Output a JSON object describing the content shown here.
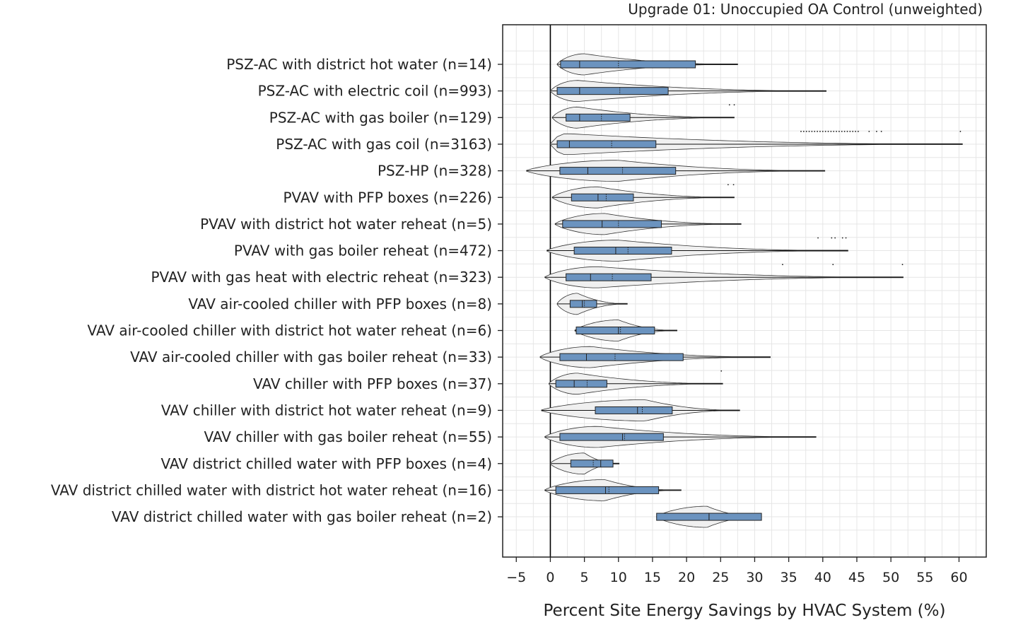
{
  "chart_data": {
    "type": "violin-box",
    "title": "Upgrade 01: Unoccupied OA Control (unweighted)",
    "xlabel": "Percent Site Energy Savings by HVAC System (%)",
    "ylabel": "",
    "xlim": [
      -7,
      64
    ],
    "x_ticks": [
      -5,
      0,
      5,
      10,
      15,
      20,
      25,
      30,
      35,
      40,
      45,
      50,
      55,
      60
    ],
    "x_tick_labels": [
      "−5",
      "0",
      "5",
      "10",
      "15",
      "20",
      "25",
      "30",
      "35",
      "40",
      "45",
      "50",
      "55",
      "60"
    ],
    "grid": true,
    "colors": {
      "box": "#6b93bf",
      "violin": "#f0f0f0",
      "outline": "#333333",
      "zero_line": "#000000",
      "grid": "#e6e6e6"
    },
    "series": [
      {
        "label": "PSZ-AC with district hot water (n=14)",
        "violin": [
          1.0,
          27.5,
          5
        ],
        "box": [
          1.5,
          21.3
        ],
        "median": 4.3,
        "mean": 10.0,
        "whisker": [
          1.0,
          27.5
        ],
        "outliers": []
      },
      {
        "label": "PSZ-AC with electric coil (n=993)",
        "violin": [
          0.0,
          40.5,
          4
        ],
        "box": [
          1.0,
          17.3
        ],
        "median": 4.3,
        "mean": 10.2,
        "whisker": [
          0.0,
          40.5
        ],
        "outliers": []
      },
      {
        "label": "PSZ-AC with gas boiler (n=129)",
        "violin": [
          0.3,
          27.0,
          4
        ],
        "box": [
          2.3,
          11.7
        ],
        "median": 4.3,
        "mean": 7.5,
        "whisker": [
          0.3,
          27.0
        ],
        "outliers": [
          26.3,
          27.0
        ]
      },
      {
        "label": "PSZ-AC with gas coil (n=3163)",
        "violin": [
          0.0,
          60.5,
          2
        ],
        "box": [
          1.0,
          15.5
        ],
        "median": 2.8,
        "mean": 9.0,
        "whisker": [
          0.0,
          60.5
        ],
        "outliers": [
          36.8,
          37.2,
          37.6,
          38.0,
          38.4,
          38.8,
          39.2,
          39.6,
          40.0,
          40.4,
          40.8,
          41.2,
          41.6,
          42.0,
          42.4,
          42.8,
          43.2,
          43.6,
          44.0,
          44.4,
          44.8,
          45.2,
          46.8,
          47.9,
          48.6,
          60.2
        ]
      },
      {
        "label": "PSZ-HP (n=328)",
        "violin": [
          -3.5,
          40.3,
          10
        ],
        "box": [
          1.4,
          18.4
        ],
        "median": 5.5,
        "mean": 10.6,
        "whisker": [
          -3.5,
          40.3
        ],
        "outliers": []
      },
      {
        "label": "PVAV with PFP boxes (n=226)",
        "violin": [
          0.3,
          27.0,
          7
        ],
        "box": [
          3.1,
          12.2
        ],
        "median": 7.0,
        "mean": 8.2,
        "whisker": [
          0.3,
          27.0
        ],
        "outliers": [
          26.1,
          26.9
        ]
      },
      {
        "label": "PVAV with district hot water reheat (n=5)",
        "violin": [
          0.7,
          28.0,
          8
        ],
        "box": [
          1.8,
          16.3
        ],
        "median": 7.6,
        "mean": 10.0,
        "whisker": [
          0.7,
          28.0
        ],
        "outliers": []
      },
      {
        "label": "PVAV with gas boiler reheat (n=472)",
        "violin": [
          -0.5,
          43.7,
          10
        ],
        "box": [
          3.5,
          17.8
        ],
        "median": 9.6,
        "mean": 11.4,
        "whisker": [
          -0.5,
          43.7
        ],
        "outliers": [
          39.3,
          41.3,
          41.8,
          42.9,
          43.4
        ]
      },
      {
        "label": "PVAV with gas heat with electric reheat (n=323)",
        "violin": [
          -0.8,
          51.8,
          7
        ],
        "box": [
          2.3,
          14.8
        ],
        "median": 5.9,
        "mean": 9.1,
        "whisker": [
          -0.8,
          51.8
        ],
        "outliers": [
          34.1,
          41.5,
          51.7
        ]
      },
      {
        "label": "VAV air-cooled chiller with PFP boxes (n=8)",
        "violin": [
          1.0,
          11.3,
          4
        ],
        "box": [
          2.9,
          6.8
        ],
        "median": 4.7,
        "mean": 5.0,
        "whisker": [
          1.0,
          11.3
        ],
        "outliers": []
      },
      {
        "label": "VAV air-cooled chiller with district hot water reheat (n=6)",
        "violin": [
          3.6,
          18.6,
          10
        ],
        "box": [
          3.8,
          15.3
        ],
        "median": 10.0,
        "mean": 10.3,
        "whisker": [
          3.6,
          18.6
        ],
        "outliers": []
      },
      {
        "label": "VAV air-cooled chiller with gas boiler reheat (n=33)",
        "violin": [
          -1.5,
          32.3,
          6
        ],
        "box": [
          1.4,
          19.5
        ],
        "median": 5.3,
        "mean": 9.5,
        "whisker": [
          -1.5,
          32.3
        ],
        "outliers": []
      },
      {
        "label": "VAV chiller with PFP boxes (n=37)",
        "violin": [
          -0.2,
          25.3,
          4
        ],
        "box": [
          0.8,
          8.3
        ],
        "median": 3.5,
        "mean": 5.4,
        "whisker": [
          -0.2,
          25.3
        ],
        "outliers": [
          25.1
        ]
      },
      {
        "label": "VAV chiller with district hot water reheat (n=9)",
        "violin": [
          -1.3,
          27.8,
          14
        ],
        "box": [
          6.6,
          17.9
        ],
        "median": 12.8,
        "mean": 13.5,
        "whisker": [
          -1.3,
          27.8
        ],
        "outliers": []
      },
      {
        "label": "VAV chiller with gas boiler reheat (n=55)",
        "violin": [
          -0.8,
          39.0,
          7
        ],
        "box": [
          1.4,
          16.6
        ],
        "median": 10.6,
        "mean": 10.9,
        "whisker": [
          -0.8,
          39.0
        ],
        "outliers": []
      },
      {
        "label": "VAV district chilled water with PFP boxes (n=4)",
        "violin": [
          0.0,
          10.1,
          5
        ],
        "box": [
          3.0,
          9.2
        ],
        "median": 7.4,
        "mean": 6.3,
        "whisker": [
          0.0,
          10.1
        ],
        "outliers": []
      },
      {
        "label": "VAV district chilled water with district hot water reheat (n=16)",
        "violin": [
          -0.8,
          19.2,
          8
        ],
        "box": [
          0.8,
          15.9
        ],
        "median": 8.1,
        "mean": 8.6,
        "whisker": [
          -0.8,
          19.2
        ],
        "outliers": []
      },
      {
        "label": "VAV district chilled water with gas boiler reheat (n=2)",
        "violin": [
          15.6,
          31.0,
          23
        ],
        "box": [
          15.6,
          31.0
        ],
        "median": 23.3,
        "mean": 23.3,
        "whisker": [
          15.6,
          31.0
        ],
        "outliers": []
      }
    ]
  }
}
